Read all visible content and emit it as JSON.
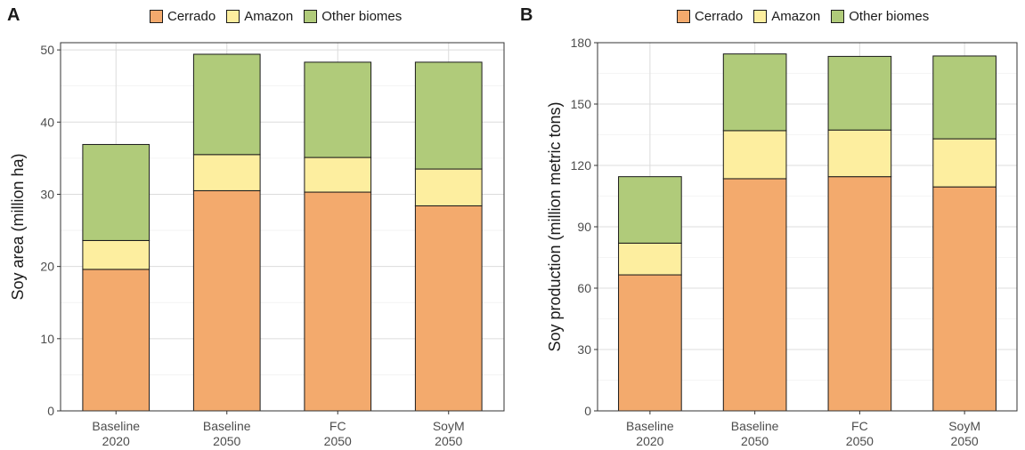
{
  "chart_data": [
    {
      "panel": "A",
      "type": "bar",
      "stacked": true,
      "categories": [
        [
          "Baseline",
          "2020"
        ],
        [
          "Baseline",
          "2050"
        ],
        [
          "FC",
          "2050"
        ],
        [
          "SoyM",
          "2050"
        ]
      ],
      "series": [
        {
          "name": "Cerrado",
          "color": "#f3aa6d",
          "values": [
            19.6,
            30.5,
            30.3,
            28.4
          ]
        },
        {
          "name": "Amazon",
          "color": "#fdee9f",
          "values": [
            4.0,
            5.0,
            4.8,
            5.1
          ]
        },
        {
          "name": "Other biomes",
          "color": "#b0cb7a",
          "values": [
            13.3,
            13.9,
            13.2,
            14.8
          ]
        }
      ],
      "xlabel": "",
      "ylabel": "Soy area (million ha)",
      "ylim": [
        0,
        51
      ],
      "yticks": [
        0,
        10,
        20,
        30,
        40,
        50
      ],
      "grid": true,
      "legend": "top"
    },
    {
      "panel": "B",
      "type": "bar",
      "stacked": true,
      "categories": [
        [
          "Baseline",
          "2020"
        ],
        [
          "Baseline",
          "2050"
        ],
        [
          "FC",
          "2050"
        ],
        [
          "SoyM",
          "2050"
        ]
      ],
      "series": [
        {
          "name": "Cerrado",
          "color": "#f3aa6d",
          "values": [
            66.5,
            113.5,
            114.5,
            109.5
          ]
        },
        {
          "name": "Amazon",
          "color": "#fdee9f",
          "values": [
            15.5,
            23.5,
            22.8,
            23.5
          ]
        },
        {
          "name": "Other biomes",
          "color": "#b0cb7a",
          "values": [
            32.5,
            37.5,
            36.0,
            40.5
          ]
        }
      ],
      "xlabel": "",
      "ylabel": "Soy production (million metric tons)",
      "ylim": [
        0,
        180
      ],
      "yticks": [
        0,
        30,
        60,
        90,
        120,
        150,
        180
      ],
      "grid": true,
      "legend": "top"
    }
  ]
}
